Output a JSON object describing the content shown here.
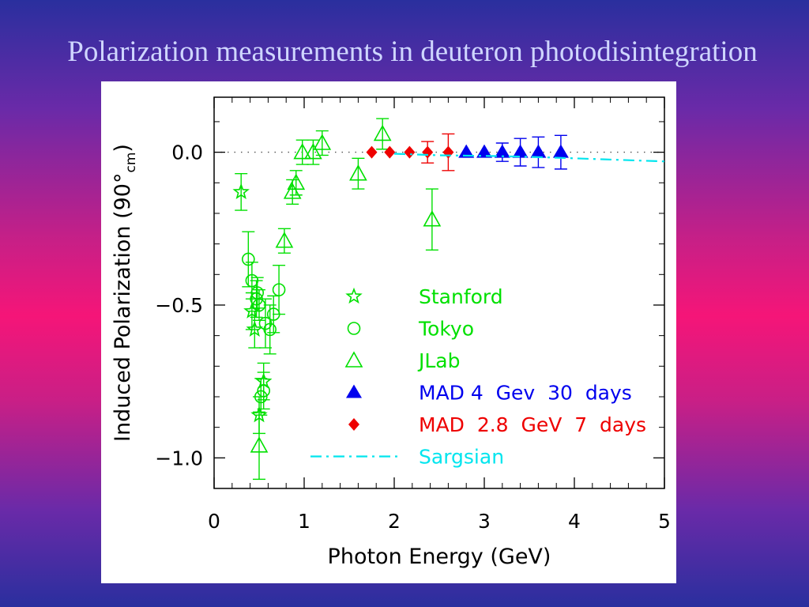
{
  "slide": {
    "title": "Polarization measurements in deuteron photodisintegration"
  },
  "colors": {
    "green": "#00e000",
    "blue": "#0000ee",
    "red": "#ee0000",
    "cyan": "#00e5ee"
  },
  "chart_data": {
    "type": "scatter",
    "xlabel": "Photon Energy (GeV)",
    "ylabel": "Induced Polarization (90°",
    "ylabel_sub": "cm",
    "ylabel_close": ")",
    "xlim": [
      0,
      5
    ],
    "ylim": [
      -1.1,
      0.18
    ],
    "xticks": [
      0,
      1,
      2,
      3,
      4,
      5
    ],
    "yticks": [
      0.0,
      -0.5,
      -1.0
    ],
    "ytick_labels": [
      "0.0",
      "−0.5",
      "−1.0"
    ],
    "zero_line": "dotted",
    "legend_position": "lower-center",
    "series": [
      {
        "name": "Stanford",
        "marker": "star",
        "color": "#00e000",
        "points": [
          {
            "x": 0.3,
            "y": -0.13,
            "err": 0.06
          },
          {
            "x": 0.42,
            "y": -0.52,
            "err": 0.06
          },
          {
            "x": 0.45,
            "y": -0.58,
            "err": 0.06
          },
          {
            "x": 0.5,
            "y": -0.86,
            "err": 0.06
          },
          {
            "x": 0.55,
            "y": -0.75,
            "err": 0.06
          }
        ]
      },
      {
        "name": "Tokyo",
        "marker": "circle",
        "color": "#00e000",
        "points": [
          {
            "x": 0.38,
            "y": -0.35,
            "err": 0.09
          },
          {
            "x": 0.42,
            "y": -0.42,
            "err": 0.06
          },
          {
            "x": 0.47,
            "y": -0.48,
            "err": 0.06
          },
          {
            "x": 0.48,
            "y": -0.46,
            "err": 0.05
          },
          {
            "x": 0.5,
            "y": -0.5,
            "err": 0.05
          },
          {
            "x": 0.52,
            "y": -0.8,
            "err": 0.06
          },
          {
            "x": 0.55,
            "y": -0.78,
            "err": 0.06
          },
          {
            "x": 0.57,
            "y": -0.56,
            "err": 0.08
          },
          {
            "x": 0.62,
            "y": -0.58,
            "err": 0.08
          },
          {
            "x": 0.66,
            "y": -0.53,
            "err": 0.06
          },
          {
            "x": 0.72,
            "y": -0.45,
            "err": 0.08
          }
        ]
      },
      {
        "name": "JLab",
        "marker": "triangle-open",
        "color": "#00e000",
        "points": [
          {
            "x": 0.5,
            "y": -0.96,
            "err": 0.11
          },
          {
            "x": 0.78,
            "y": -0.29,
            "err": 0.04
          },
          {
            "x": 0.87,
            "y": -0.13,
            "err": 0.04
          },
          {
            "x": 0.91,
            "y": -0.1,
            "err": 0.04
          },
          {
            "x": 0.98,
            "y": 0.0,
            "err": 0.04
          },
          {
            "x": 1.1,
            "y": 0.0,
            "err": 0.04
          },
          {
            "x": 1.2,
            "y": 0.03,
            "err": 0.04
          },
          {
            "x": 1.6,
            "y": -0.07,
            "err": 0.05
          },
          {
            "x": 1.87,
            "y": 0.06,
            "err": 0.05
          },
          {
            "x": 2.42,
            "y": -0.22,
            "err": 0.1
          }
        ]
      },
      {
        "name": "MAD 4  Gev  30  days",
        "marker": "triangle-filled",
        "color": "#0000ee",
        "points": [
          {
            "x": 2.8,
            "y": 0.0,
            "err": 0.0
          },
          {
            "x": 3.0,
            "y": 0.0,
            "err": 0.0
          },
          {
            "x": 3.2,
            "y": 0.0,
            "err": 0.03
          },
          {
            "x": 3.4,
            "y": 0.0,
            "err": 0.045
          },
          {
            "x": 3.6,
            "y": 0.0,
            "err": 0.05
          },
          {
            "x": 3.85,
            "y": 0.0,
            "err": 0.055
          }
        ]
      },
      {
        "name": "MAD  2.8  GeV  7  days",
        "marker": "diamond",
        "color": "#ee0000",
        "points": [
          {
            "x": 1.75,
            "y": 0.0,
            "err": 0.0
          },
          {
            "x": 1.95,
            "y": 0.0,
            "err": 0.0
          },
          {
            "x": 2.17,
            "y": 0.0,
            "err": 0.0
          },
          {
            "x": 2.37,
            "y": 0.0,
            "err": 0.035
          },
          {
            "x": 2.6,
            "y": 0.0,
            "err": 0.06
          }
        ]
      },
      {
        "name": "Sargsian",
        "marker": "dash-dot-line",
        "color": "#00e5ee",
        "x": [
          2.0,
          2.5,
          3.0,
          3.5,
          4.0,
          4.5,
          5.0
        ],
        "y": [
          -0.005,
          -0.01,
          -0.012,
          -0.015,
          -0.02,
          -0.025,
          -0.03
        ]
      }
    ]
  }
}
